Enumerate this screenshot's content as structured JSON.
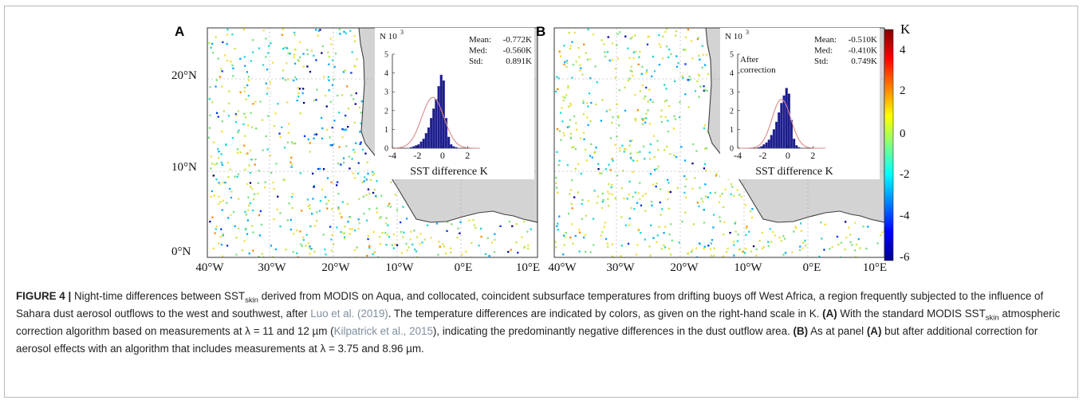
{
  "figure": {
    "panels": [
      {
        "label": "A",
        "inset": {
          "n_label": "N 10",
          "n_exp": "3",
          "stats": [
            {
              "name": "Mean:",
              "value": "-0.772K"
            },
            {
              "name": "Med:",
              "value": "-0.560K"
            },
            {
              "name": "Std:",
              "value": "0.891K"
            }
          ],
          "note_lines": [],
          "xlabel": "SST difference K",
          "xticks": [
            "-4",
            "-2",
            "0",
            "2"
          ],
          "yticks": [
            "0",
            "1",
            "2",
            "3",
            "4",
            "5"
          ],
          "histogram": {
            "bins_left": [
              -2.6,
              -2.4,
              -2.2,
              -2.0,
              -1.8,
              -1.6,
              -1.4,
              -1.2,
              -1.0,
              -0.8,
              -0.6,
              -0.4,
              -0.2,
              0.0,
              0.2,
              0.4,
              0.6,
              0.8,
              1.0
            ],
            "bin_width": 0.2,
            "counts": [
              0.05,
              0.1,
              0.15,
              0.2,
              0.35,
              0.5,
              0.8,
              1.1,
              1.6,
              2.1,
              2.6,
              3.3,
              3.9,
              3.6,
              1.6,
              0.6,
              0.2,
              0.1,
              0.05
            ]
          },
          "fit": {
            "mean": -0.77,
            "std": 0.89,
            "peak": 2.7
          }
        }
      },
      {
        "label": "B",
        "inset": {
          "n_label": "N 10",
          "n_exp": "3",
          "stats": [
            {
              "name": "Mean:",
              "value": "-0.510K"
            },
            {
              "name": "Med:",
              "value": "-0.410K"
            },
            {
              "name": "Std:",
              "value": "0.749K"
            }
          ],
          "note_lines": [
            "After",
            "correction"
          ],
          "xlabel": "SST difference K",
          "xticks": [
            "-4",
            "-2",
            "0",
            "2"
          ],
          "yticks": [
            "0",
            "1",
            "2",
            "3",
            "4",
            "5"
          ],
          "histogram": {
            "bins_left": [
              -2.4,
              -2.2,
              -2.0,
              -1.8,
              -1.6,
              -1.4,
              -1.2,
              -1.0,
              -0.8,
              -0.6,
              -0.4,
              -0.2,
              0.0,
              0.2,
              0.4,
              0.6,
              0.8
            ],
            "bin_width": 0.2,
            "counts": [
              0.05,
              0.1,
              0.2,
              0.3,
              0.45,
              0.7,
              1.0,
              1.4,
              1.9,
              2.4,
              2.8,
              3.2,
              2.9,
              1.5,
              0.5,
              0.15,
              0.05
            ]
          },
          "fit": {
            "mean": -0.51,
            "std": 0.75,
            "peak": 2.6
          }
        }
      }
    ],
    "map_axes": {
      "x_ticks": [
        "40°W",
        "30°W",
        "20°W",
        "10°W",
        "0°E",
        "10°E"
      ],
      "y_ticks": [
        "20°N",
        "10°N",
        "0°N"
      ]
    },
    "colorbar": {
      "unit": "K",
      "ticks": [
        "4",
        "2",
        "0",
        "-2",
        "-4",
        "-6"
      ],
      "range": [
        -6,
        5
      ],
      "colors": [
        "#00008f",
        "#0000ff",
        "#0080ff",
        "#00ffff",
        "#80ff80",
        "#ffff00",
        "#ff8000",
        "#ff0000",
        "#800000"
      ]
    },
    "colors": {
      "land": "#d3d3d3",
      "coast": "#404040",
      "fit_curve": "#d98a8a",
      "bars": "#1c1c8c"
    }
  },
  "caption": {
    "fig_label": "FIGURE 4 |",
    "p1": " Night-time differences between SST",
    "sub_skin": "skin",
    "p2": " derived from MODIS on Aqua, and collocated, coincident subsurface temperatures from drifting buoys off West Africa, a region frequently subjected to the influence of Sahara dust aerosol outflows to the west and southwest, after ",
    "ref1": "Luo et al. (2019)",
    "p3": ". The temperature differences are indicated by colors, as given on the right-hand scale in K. ",
    "panelA": "(A)",
    "p4": " With the standard MODIS SST",
    "sub_skin2": "skin",
    "p5": " atmospheric correction algorithm based on measurements at λ = 11 and 12 µm (",
    "ref2": "Kilpatrick et al., 2015",
    "p6": "), indicating the predominantly negative differences in the dust outflow area. ",
    "panelB": "(B)",
    "p7": " As at panel ",
    "panelA2": "(A)",
    "p8": " but after additional correction for aerosol effects with an algorithm that includes measurements at λ = 3.75 and 8.96 µm."
  }
}
